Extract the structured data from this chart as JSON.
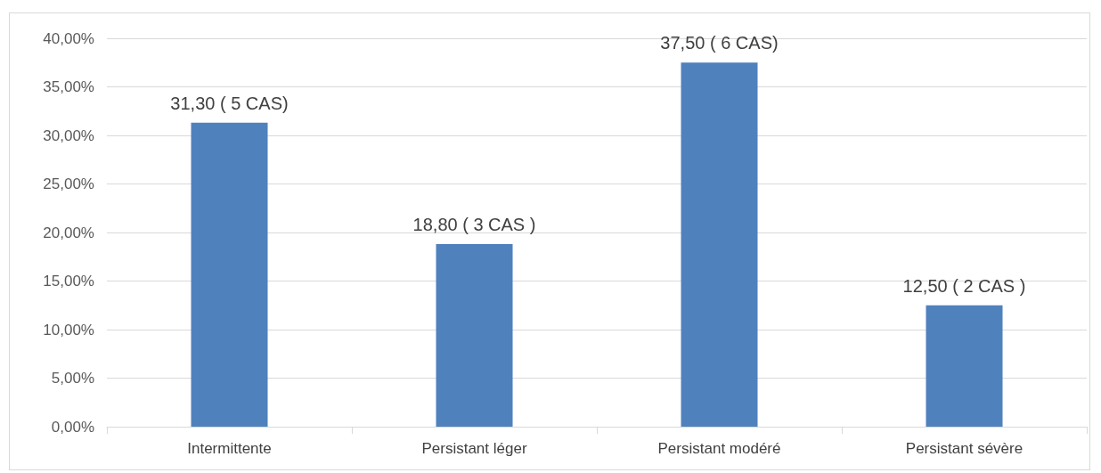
{
  "chart_data": {
    "type": "bar",
    "categories": [
      "Intermittente",
      "Persistant léger",
      "Persistant modéré",
      "Persistant sévère"
    ],
    "values": [
      31.3,
      18.8,
      37.5,
      12.5
    ],
    "value_labels": [
      "31,30 ( 5 CAS)",
      "18,80 ( 3 CAS )",
      "37,50 ( 6 CAS)",
      "12,50 ( 2 CAS )"
    ],
    "color": "#4f81bd",
    "ylim": [
      0,
      40
    ],
    "yticks": [
      {
        "value": 0,
        "label": "0,00%"
      },
      {
        "value": 5,
        "label": "5,00%"
      },
      {
        "value": 10,
        "label": "10,00%"
      },
      {
        "value": 15,
        "label": "15,00%"
      },
      {
        "value": 20,
        "label": "20,00%"
      },
      {
        "value": 25,
        "label": "25,00%"
      },
      {
        "value": 30,
        "label": "30,00%"
      },
      {
        "value": 35,
        "label": "35,00%"
      },
      {
        "value": 40,
        "label": "40,00%"
      }
    ],
    "grid": "y"
  }
}
